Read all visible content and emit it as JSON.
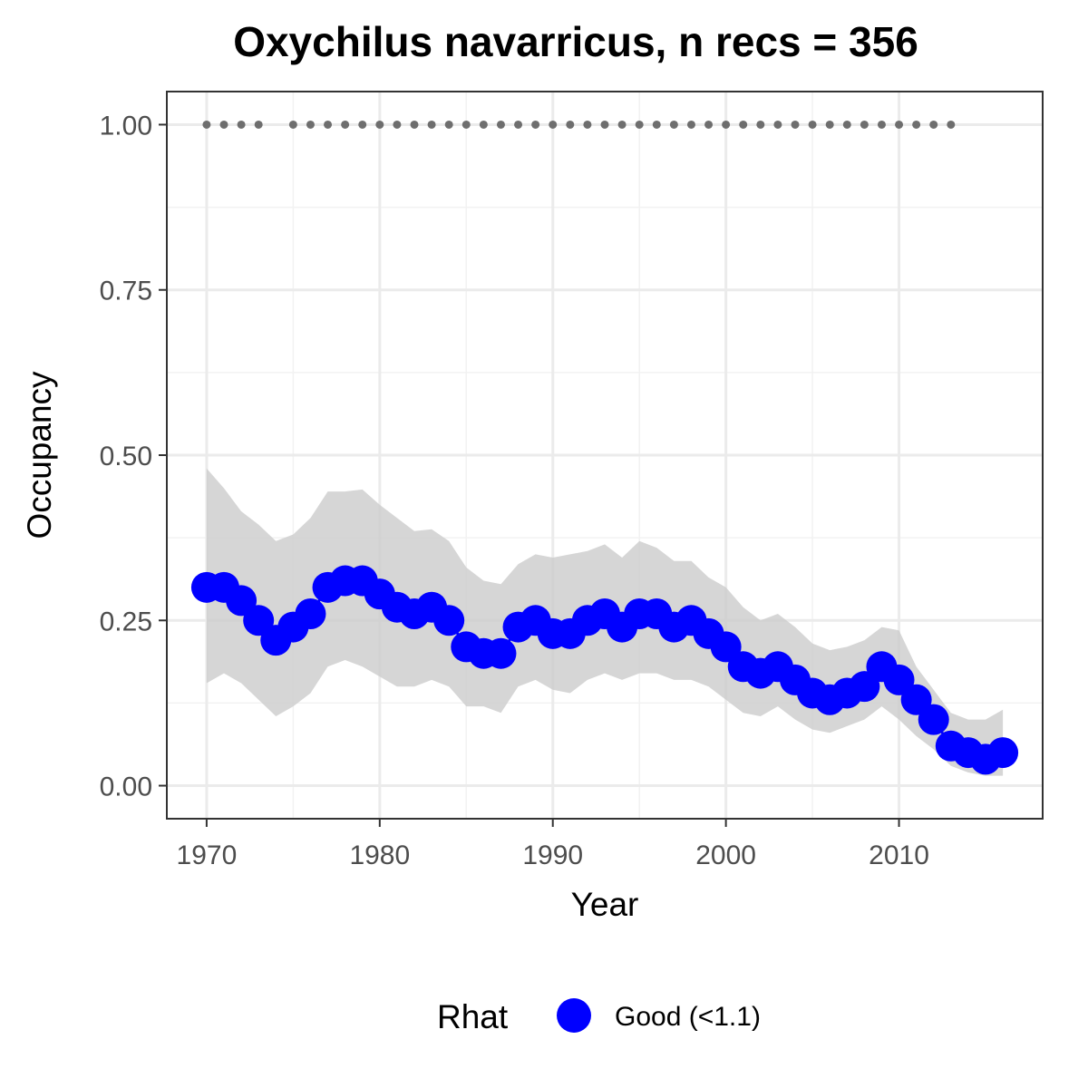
{
  "chart_data": {
    "type": "line",
    "title": "Oxychilus navarricus, n recs = 356",
    "xlabel": "Year",
    "ylabel": "Occupancy",
    "xlim": [
      1967.7,
      2018.3
    ],
    "ylim": [
      -0.05,
      1.05
    ],
    "x_ticks": [
      1970,
      1980,
      1990,
      2000,
      2010
    ],
    "x_tick_labels": [
      "1970",
      "1980",
      "1990",
      "2000",
      "2010"
    ],
    "y_ticks": [
      0,
      0.25,
      0.5,
      0.75,
      1
    ],
    "y_tick_labels": [
      "0.00",
      "0.25",
      "0.50",
      "0.75",
      "1.00"
    ],
    "grid": true,
    "years": [
      1970,
      1971,
      1972,
      1973,
      1974,
      1975,
      1976,
      1977,
      1978,
      1979,
      1980,
      1981,
      1982,
      1983,
      1984,
      1985,
      1986,
      1987,
      1988,
      1989,
      1990,
      1991,
      1992,
      1993,
      1994,
      1995,
      1996,
      1997,
      1998,
      1999,
      2000,
      2001,
      2002,
      2003,
      2004,
      2005,
      2006,
      2007,
      2008,
      2009,
      2010,
      2011,
      2012,
      2013,
      2014,
      2015,
      2016
    ],
    "series": [
      {
        "name": "Good (<1.1)",
        "color": "#0000ff",
        "values": [
          0.3,
          0.3,
          0.28,
          0.25,
          0.22,
          0.24,
          0.26,
          0.3,
          0.31,
          0.31,
          0.29,
          0.27,
          0.26,
          0.27,
          0.25,
          0.21,
          0.2,
          0.2,
          0.24,
          0.25,
          0.23,
          0.23,
          0.25,
          0.26,
          0.24,
          0.26,
          0.26,
          0.24,
          0.25,
          0.23,
          0.21,
          0.18,
          0.17,
          0.18,
          0.16,
          0.14,
          0.13,
          0.14,
          0.15,
          0.18,
          0.16,
          0.13,
          0.1,
          0.06,
          0.05,
          0.04,
          0.05
        ],
        "lower": [
          0.155,
          0.17,
          0.155,
          0.13,
          0.105,
          0.12,
          0.14,
          0.18,
          0.19,
          0.18,
          0.165,
          0.15,
          0.15,
          0.16,
          0.15,
          0.12,
          0.12,
          0.11,
          0.15,
          0.16,
          0.145,
          0.14,
          0.16,
          0.17,
          0.16,
          0.17,
          0.17,
          0.16,
          0.16,
          0.15,
          0.13,
          0.11,
          0.105,
          0.12,
          0.1,
          0.085,
          0.08,
          0.09,
          0.1,
          0.12,
          0.1,
          0.075,
          0.055,
          0.03,
          0.02,
          0.015,
          0.015
        ],
        "upper": [
          0.48,
          0.45,
          0.415,
          0.395,
          0.37,
          0.38,
          0.405,
          0.445,
          0.445,
          0.448,
          0.425,
          0.405,
          0.385,
          0.388,
          0.37,
          0.33,
          0.31,
          0.305,
          0.335,
          0.35,
          0.345,
          0.35,
          0.355,
          0.365,
          0.345,
          0.37,
          0.36,
          0.34,
          0.34,
          0.315,
          0.3,
          0.27,
          0.25,
          0.26,
          0.24,
          0.215,
          0.205,
          0.21,
          0.22,
          0.24,
          0.235,
          0.18,
          0.145,
          0.11,
          0.1,
          0.1,
          0.115
        ]
      }
    ],
    "record_years": [
      1970,
      1971,
      1972,
      1973,
      1975,
      1976,
      1977,
      1978,
      1979,
      1980,
      1981,
      1982,
      1983,
      1984,
      1985,
      1986,
      1987,
      1988,
      1989,
      1990,
      1991,
      1992,
      1993,
      1994,
      1995,
      1996,
      1997,
      1998,
      1999,
      2000,
      2001,
      2002,
      2003,
      2004,
      2005,
      2006,
      2007,
      2008,
      2009,
      2010,
      2011,
      2012,
      2013
    ],
    "record_value": 1.0,
    "legend": {
      "title": "Rhat",
      "position": "bottom"
    }
  }
}
